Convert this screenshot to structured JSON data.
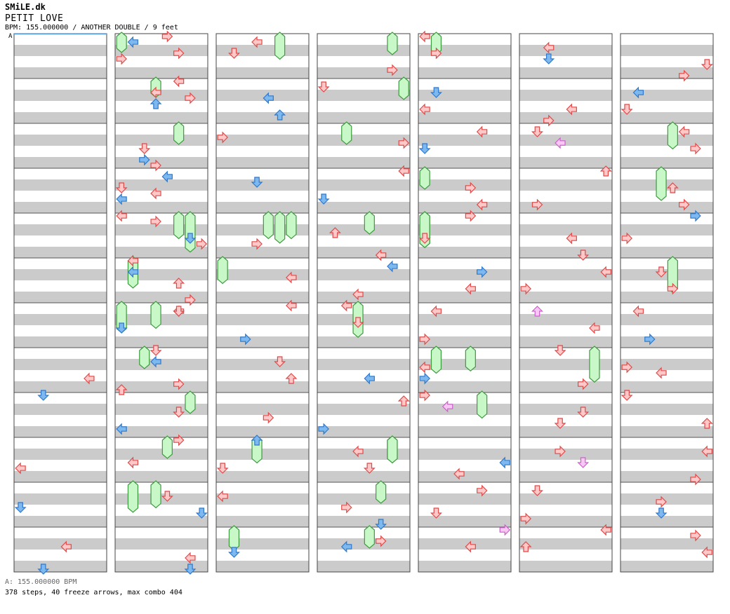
{
  "header": {
    "brand": "SMiLE.dk",
    "song_title": "PETIT LOVE",
    "chart_info": "BPM: 155.000000 / ANOTHER DOUBLE / 9 feet"
  },
  "bpm_marker": "A",
  "footer": {
    "bpm_legend": "A: 155.000000 BPM",
    "stats": "378 steps, 40 freeze arrows, max combo 404"
  },
  "icons": {
    "step": "step-arrow-icon",
    "freeze": "freeze-arrow-icon"
  },
  "colors": {
    "red": "#fdc8c8",
    "blue": "#7db8ee",
    "pink": "#f8c8f4",
    "freeze": "#c8f8c8",
    "band": "#cbcbcb",
    "position_line": "#5a9fe0"
  },
  "chart_data": {
    "type": "step-chart",
    "columns": 7,
    "measures_per_column": 12,
    "measure_count": 84,
    "lanes": [
      "L",
      "D",
      "U",
      "R",
      "L",
      "D",
      "U",
      "R"
    ],
    "notes": [
      [
        7,
        5,
        0,
        "L"
      ],
      [
        8,
        0,
        1,
        "D"
      ],
      [
        9,
        5,
        0,
        "L"
      ],
      [
        10,
        4,
        1,
        "D"
      ],
      [
        11,
        3,
        0,
        "L"
      ],
      [
        11,
        7,
        1,
        "D"
      ],
      [
        12,
        1,
        1,
        "L"
      ],
      [
        12,
        4,
        0,
        "R"
      ],
      [
        13,
        0,
        0,
        "L"
      ],
      [
        13,
        3,
        0,
        "R"
      ],
      [
        14,
        6,
        1,
        "R"
      ],
      [
        15,
        3,
        0,
        "D"
      ],
      [
        15,
        5,
        1,
        "L"
      ],
      [
        16,
        1,
        0,
        "R"
      ],
      [
        16,
        5,
        0,
        "R"
      ],
      [
        17,
        0,
        0,
        "L"
      ],
      [
        17,
        2,
        1,
        "L"
      ],
      [
        18,
        1,
        0,
        "L"
      ],
      [
        18,
        4,
        1,
        "D"
      ],
      [
        19,
        0,
        0,
        "D"
      ],
      [
        19,
        6,
        0,
        "R"
      ],
      [
        20,
        3,
        0,
        "D"
      ],
      [
        20,
        6,
        1,
        "L"
      ],
      [
        21,
        0,
        0,
        "R"
      ],
      [
        21,
        4,
        0,
        "L"
      ],
      [
        22,
        2,
        0,
        "D"
      ],
      [
        22,
        5,
        1,
        "D"
      ],
      [
        23,
        5,
        0,
        "L"
      ],
      [
        23,
        7,
        1,
        "D"
      ],
      [
        12,
        0,
        0,
        "R"
      ],
      [
        12,
        3,
        0,
        "R"
      ],
      [
        13,
        2,
        0,
        "L"
      ],
      [
        13,
        4,
        1,
        "U"
      ],
      [
        14,
        4,
        0,
        "D"
      ],
      [
        14,
        7,
        0,
        "R"
      ],
      [
        15,
        1,
        1,
        "L"
      ],
      [
        15,
        4,
        0,
        "L"
      ],
      [
        16,
        0,
        0,
        "L"
      ],
      [
        16,
        4,
        1,
        "D"
      ],
      [
        17,
        4,
        0,
        "U"
      ],
      [
        17,
        7,
        0,
        "R"
      ],
      [
        18,
        1,
        0,
        "D"
      ],
      [
        19,
        2,
        1,
        "L"
      ],
      [
        19,
        7,
        0,
        "U"
      ],
      [
        24,
        1,
        0,
        "L"
      ],
      [
        24,
        3,
        0,
        "D"
      ],
      [
        25,
        3,
        1,
        "L"
      ],
      [
        25,
        6,
        1,
        "U"
      ],
      [
        26,
        2,
        0,
        "R"
      ],
      [
        27,
        2,
        1,
        "D"
      ],
      [
        28,
        5,
        0,
        "R"
      ],
      [
        29,
        3,
        0,
        "L"
      ],
      [
        30,
        0,
        0,
        "L"
      ],
      [
        30,
        6,
        1,
        "R"
      ],
      [
        31,
        2,
        0,
        "D"
      ],
      [
        31,
        5,
        0,
        "U"
      ],
      [
        32,
        4,
        0,
        "R"
      ],
      [
        33,
        0,
        1,
        "U"
      ],
      [
        33,
        5,
        0,
        "D"
      ],
      [
        34,
        2,
        0,
        "L"
      ],
      [
        35,
        4,
        1,
        "D"
      ],
      [
        36,
        6,
        0,
        "R"
      ],
      [
        37,
        1,
        0,
        "D"
      ],
      [
        38,
        3,
        0,
        "R"
      ],
      [
        39,
        0,
        0,
        "L"
      ],
      [
        39,
        5,
        1,
        "D"
      ],
      [
        40,
        3,
        0,
        "U"
      ],
      [
        40,
        7,
        0,
        "L"
      ],
      [
        41,
        1,
        1,
        "L"
      ],
      [
        41,
        6,
        0,
        "L"
      ],
      [
        42,
        0,
        0,
        "L"
      ],
      [
        42,
        3,
        0,
        "D"
      ],
      [
        43,
        5,
        1,
        "L"
      ],
      [
        44,
        1,
        0,
        "U"
      ],
      [
        44,
        6,
        1,
        "R"
      ],
      [
        45,
        2,
        0,
        "L"
      ],
      [
        45,
        5,
        0,
        "D"
      ],
      [
        46,
        4,
        0,
        "R"
      ],
      [
        46,
        7,
        1,
        "D"
      ],
      [
        47,
        2,
        0,
        "R"
      ],
      [
        47,
        3,
        1,
        "L"
      ],
      [
        48,
        0,
        0,
        "L"
      ],
      [
        48,
        3,
        0,
        "R"
      ],
      [
        49,
        2,
        1,
        "D"
      ],
      [
        49,
        5,
        0,
        "L"
      ],
      [
        50,
        1,
        0,
        "L"
      ],
      [
        50,
        4,
        1,
        "D"
      ],
      [
        51,
        3,
        0,
        "R"
      ],
      [
        51,
        6,
        0,
        "L"
      ],
      [
        52,
        0,
        0,
        "R"
      ],
      [
        52,
        4,
        0,
        "D"
      ],
      [
        53,
        2,
        1,
        "R"
      ],
      [
        53,
        5,
        0,
        "L"
      ],
      [
        54,
        1,
        0,
        "L"
      ],
      [
        54,
        6,
        0,
        "R"
      ],
      [
        55,
        3,
        0,
        "L"
      ],
      [
        55,
        5,
        1,
        "R"
      ],
      [
        56,
        0,
        0,
        "R"
      ],
      [
        56,
        2,
        2,
        "L"
      ],
      [
        57,
        4,
        1,
        "L"
      ],
      [
        57,
        6,
        0,
        "L"
      ],
      [
        58,
        1,
        0,
        "R"
      ],
      [
        58,
        5,
        0,
        "D"
      ],
      [
        59,
        0,
        2,
        "R"
      ],
      [
        59,
        3,
        0,
        "L"
      ],
      [
        60,
        2,
        0,
        "L"
      ],
      [
        60,
        4,
        1,
        "D"
      ],
      [
        61,
        5,
        0,
        "L"
      ],
      [
        61,
        7,
        0,
        "R"
      ],
      [
        62,
        1,
        0,
        "D"
      ],
      [
        62,
        3,
        2,
        "L"
      ],
      [
        63,
        0,
        0,
        "U"
      ],
      [
        63,
        6,
        0,
        "R"
      ],
      [
        64,
        4,
        0,
        "L"
      ],
      [
        64,
        7,
        0,
        "D"
      ],
      [
        65,
        2,
        0,
        "L"
      ],
      [
        65,
        5,
        0,
        "R"
      ],
      [
        66,
        1,
        2,
        "U"
      ],
      [
        66,
        4,
        0,
        "L"
      ],
      [
        67,
        0,
        0,
        "D"
      ],
      [
        67,
        6,
        0,
        "R"
      ],
      [
        68,
        3,
        0,
        "D"
      ],
      [
        68,
        5,
        0,
        "D"
      ],
      [
        69,
        2,
        0,
        "R"
      ],
      [
        69,
        4,
        2,
        "D"
      ],
      [
        70,
        1,
        0,
        "D"
      ],
      [
        70,
        6,
        0,
        "R"
      ],
      [
        71,
        0,
        0,
        "L"
      ],
      [
        71,
        3,
        0,
        "U"
      ],
      [
        72,
        5,
        0,
        "D"
      ],
      [
        72,
        7,
        0,
        "R"
      ],
      [
        73,
        2,
        1,
        "L"
      ],
      [
        73,
        5,
        0,
        "D"
      ],
      [
        74,
        1,
        0,
        "L"
      ],
      [
        74,
        4,
        0,
        "R"
      ],
      [
        75,
        3,
        0,
        "U"
      ],
      [
        75,
        6,
        0,
        "R"
      ],
      [
        76,
        0,
        1,
        "R"
      ],
      [
        76,
        4,
        0,
        "R"
      ],
      [
        77,
        2,
        0,
        "D"
      ],
      [
        77,
        5,
        0,
        "R"
      ],
      [
        78,
        1,
        0,
        "L"
      ],
      [
        78,
        6,
        1,
        "R"
      ],
      [
        79,
        3,
        0,
        "R"
      ],
      [
        79,
        4,
        0,
        "L"
      ],
      [
        80,
        0,
        0,
        "D"
      ],
      [
        80,
        5,
        0,
        "U"
      ],
      [
        81,
        2,
        0,
        "L"
      ],
      [
        81,
        7,
        0,
        "R"
      ],
      [
        82,
        3,
        0,
        "R"
      ],
      [
        82,
        5,
        1,
        "D"
      ],
      [
        83,
        1,
        0,
        "R"
      ],
      [
        83,
        4,
        0,
        "L"
      ]
    ],
    "freezes": [
      [
        22,
        1,
        0,
        0.7
      ],
      [
        22,
        3,
        2,
        0.6
      ],
      [
        21,
        4,
        0,
        0.5
      ],
      [
        18,
        3,
        2,
        0.6
      ],
      [
        12,
        0,
        0,
        0.45
      ],
      [
        13,
        3,
        6,
        0.45
      ],
      [
        14,
        5,
        0,
        0.5
      ],
      [
        16,
        5,
        2,
        0.6
      ],
      [
        17,
        1,
        0,
        0.7
      ],
      [
        18,
        0,
        0,
        0.7
      ],
      [
        19,
        2,
        1,
        0.5
      ],
      [
        16,
        6,
        6,
        0.9
      ],
      [
        20,
        6,
        4,
        0.5
      ],
      [
        24,
        5,
        6,
        0.6
      ],
      [
        28,
        6,
        4,
        0.6
      ],
      [
        28,
        5,
        0,
        0.7
      ],
      [
        28,
        4,
        5,
        0.6
      ],
      [
        29,
        0,
        6,
        0.6
      ],
      [
        33,
        3,
        0,
        0.6
      ],
      [
        35,
        1,
        2,
        0.55
      ],
      [
        37,
        7,
        0,
        0.5
      ],
      [
        38,
        2,
        0,
        0.5
      ],
      [
        40,
        4,
        0,
        0.5
      ],
      [
        42,
        3,
        0,
        0.8
      ],
      [
        36,
        6,
        2,
        0.5
      ],
      [
        45,
        6,
        2,
        0.6
      ],
      [
        45,
        6,
        6,
        0.6
      ],
      [
        46,
        5,
        0,
        0.5
      ],
      [
        47,
        4,
        0,
        0.5
      ],
      [
        48,
        1,
        0,
        0.5
      ],
      [
        51,
        0,
        0,
        0.5
      ],
      [
        52,
        0,
        0,
        0.8
      ],
      [
        52,
        0,
        4,
        0.8
      ],
      [
        55,
        1,
        2,
        0.6
      ],
      [
        55,
        4,
        6,
        0.55
      ],
      [
        56,
        5,
        6,
        0.6
      ],
      [
        67,
        6,
        4,
        0.8
      ],
      [
        75,
        3,
        4,
        0.75
      ],
      [
        77,
        4,
        6,
        0.8
      ],
      [
        74,
        4,
        4,
        0.6
      ]
    ]
  }
}
